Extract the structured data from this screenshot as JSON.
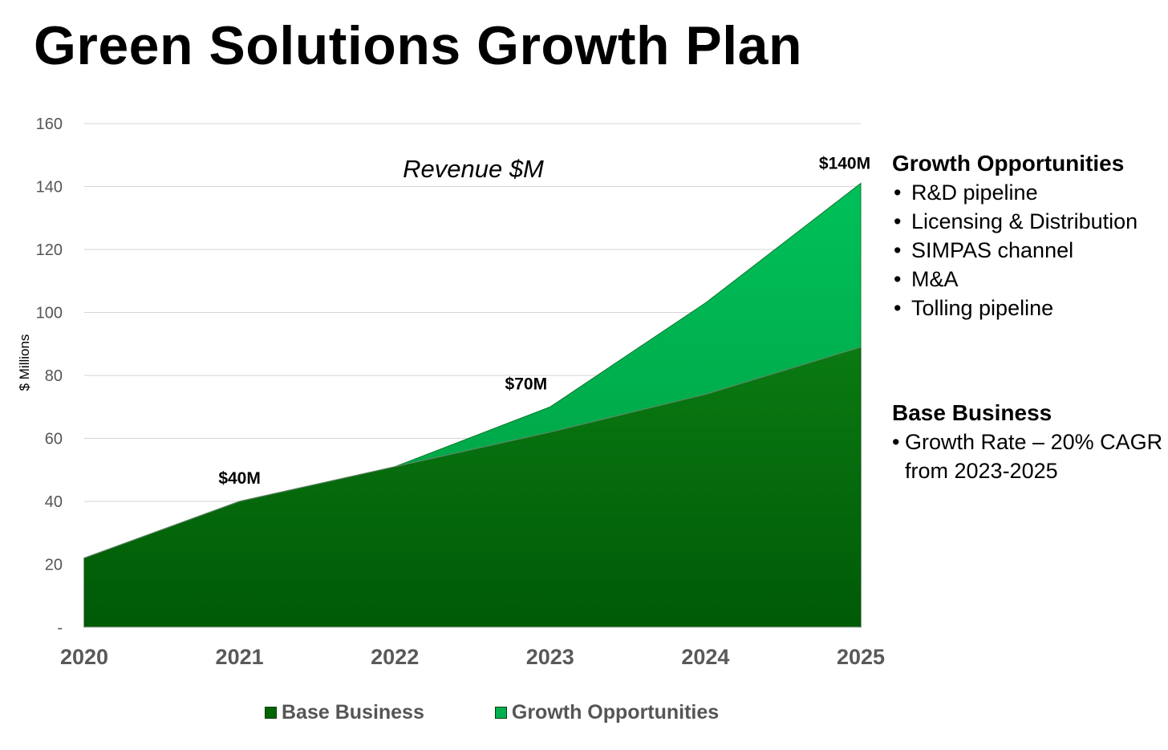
{
  "title": "Green Solutions Growth Plan",
  "chart_data": {
    "type": "area",
    "title": "Revenue $M",
    "ylabel": "$ Millions",
    "xlabel": "",
    "categories": [
      "2020",
      "2021",
      "2022",
      "2023",
      "2024",
      "2025"
    ],
    "ylim": [
      0,
      160
    ],
    "yticks": [
      0,
      20,
      40,
      60,
      80,
      100,
      120,
      140,
      160
    ],
    "ytick_labels": [
      "-",
      "20",
      "40",
      "60",
      "80",
      "100",
      "120",
      "140",
      "160"
    ],
    "stacked": true,
    "grid": true,
    "series": [
      {
        "name": "Base Business",
        "color": "#006600",
        "values": [
          22,
          40,
          51,
          62,
          74,
          89
        ]
      },
      {
        "name": "Growth Opportunities",
        "color": "#00b050",
        "values": [
          null,
          null,
          0,
          8,
          29,
          52
        ]
      }
    ],
    "annotations": [
      {
        "category": "2021",
        "value": 40,
        "text": "$40M"
      },
      {
        "category": "2023",
        "value": 70,
        "text": "$70M"
      },
      {
        "category": "2025",
        "value": 140,
        "text": "$140M"
      }
    ],
    "legend_position": "bottom"
  },
  "growth_panel": {
    "heading": "Growth Opportunities",
    "items": [
      "R&D pipeline",
      "Licensing & Distribution",
      "SIMPAS channel",
      "M&A",
      "Tolling pipeline"
    ]
  },
  "base_panel": {
    "heading": "Base Business",
    "items": [
      "Growth Rate – 20% CAGR from 2023-2025"
    ]
  },
  "legend": [
    {
      "label": "Base Business",
      "color": "#006600"
    },
    {
      "label": "Growth Opportunities",
      "color": "#00b050"
    }
  ]
}
